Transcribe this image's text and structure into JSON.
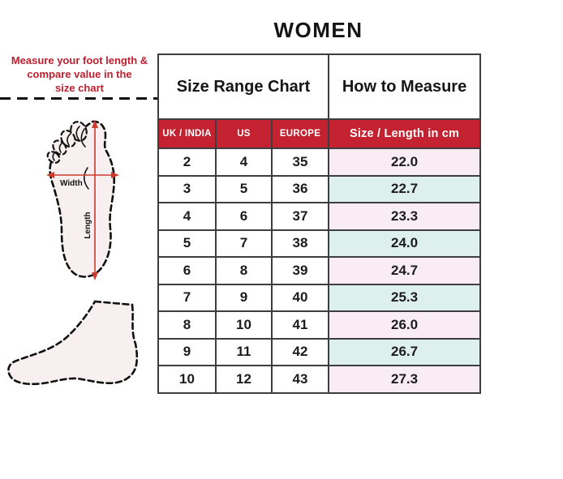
{
  "title": "WOMEN",
  "instruction": {
    "lines": [
      "Measure your foot length &",
      "compare value in the",
      "size chart"
    ]
  },
  "diagram": {
    "width_label": "Width",
    "length_label": "Length"
  },
  "table": {
    "header_left": "Size Range Chart",
    "header_right": "How to Measure",
    "columns": [
      "UK / INDIA",
      "US",
      "EUROPE",
      "Size / Length in cm"
    ],
    "rows": [
      {
        "uk": "2",
        "us": "4",
        "eu": "35",
        "cm": "22.0"
      },
      {
        "uk": "3",
        "us": "5",
        "eu": "36",
        "cm": "22.7"
      },
      {
        "uk": "4",
        "us": "6",
        "eu": "37",
        "cm": "23.3"
      },
      {
        "uk": "5",
        "us": "7",
        "eu": "38",
        "cm": "24.0"
      },
      {
        "uk": "6",
        "us": "8",
        "eu": "39",
        "cm": "24.7"
      },
      {
        "uk": "7",
        "us": "9",
        "eu": "40",
        "cm": "25.3"
      },
      {
        "uk": "8",
        "us": "10",
        "eu": "41",
        "cm": "26.0"
      },
      {
        "uk": "9",
        "us": "11",
        "eu": "42",
        "cm": "26.7"
      },
      {
        "uk": "10",
        "us": "12",
        "eu": "43",
        "cm": "27.3"
      }
    ]
  },
  "colors": {
    "red": "#C52231",
    "text-red": "#BE1E2D",
    "row-pink": "#F9EDF3",
    "row-cyan": "#DDF0EE",
    "arrow-red": "#CD3A2E"
  },
  "chart_data": {
    "type": "table",
    "title": "WOMEN",
    "columns": [
      "UK / INDIA",
      "US",
      "EUROPE",
      "Size / Length in cm"
    ],
    "rows": [
      [
        "2",
        "4",
        "35",
        "22.0"
      ],
      [
        "3",
        "5",
        "36",
        "22.7"
      ],
      [
        "4",
        "6",
        "37",
        "23.3"
      ],
      [
        "5",
        "7",
        "38",
        "24.0"
      ],
      [
        "6",
        "8",
        "39",
        "24.7"
      ],
      [
        "7",
        "9",
        "40",
        "25.3"
      ],
      [
        "8",
        "10",
        "41",
        "26.0"
      ],
      [
        "9",
        "11",
        "42",
        "26.7"
      ],
      [
        "10",
        "12",
        "43",
        "27.3"
      ]
    ]
  }
}
